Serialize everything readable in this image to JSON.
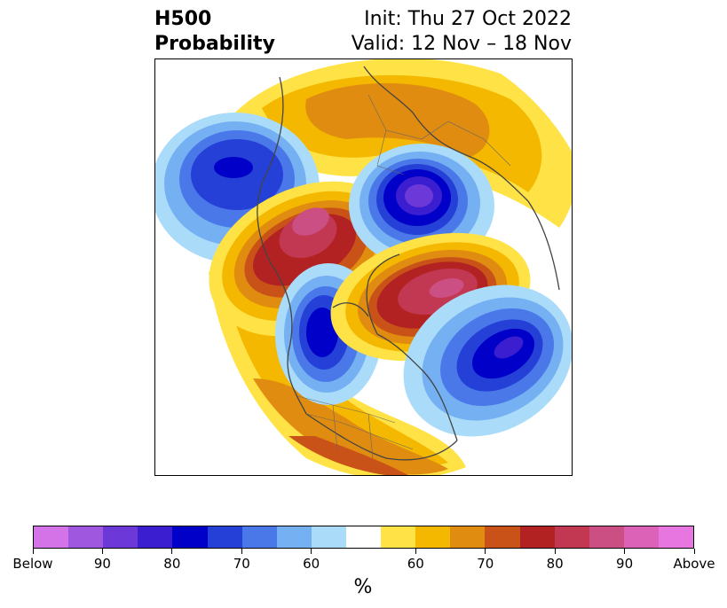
{
  "title": {
    "left_line1": "H500",
    "left_line2": "Probability",
    "right_line1": "Init: Thu 27 Oct 2022",
    "right_line2": "Valid: 12 Nov – 18 Nov"
  },
  "map": {
    "type": "north-polar-stereographic",
    "field": "500 hPa height anomaly probability",
    "anomaly_centers": [
      {
        "region": "Gulf of Alaska / NE Pacific",
        "sign": "below"
      },
      {
        "region": "Eastern Siberia / Bering",
        "sign": "above"
      },
      {
        "region": "Central Russia",
        "sign": "below"
      },
      {
        "region": "Canadian Arctic / Hudson Bay",
        "sign": "below"
      },
      {
        "region": "Greenland / North Atlantic",
        "sign": "above"
      },
      {
        "region": "Western North Atlantic",
        "sign": "below"
      }
    ]
  },
  "colorbar": {
    "unit": "%",
    "colors": [
      "#d473e8",
      "#9f57e0",
      "#6c38d8",
      "#3a1ed0",
      "#0000c8",
      "#2540d6",
      "#4a78e8",
      "#74b0f2",
      "#aadcfa",
      "#ffffff",
      "#ffe246",
      "#f4b800",
      "#e08c10",
      "#c85218",
      "#b22222",
      "#c23852",
      "#cc4f83",
      "#dc62b8",
      "#e876e0"
    ],
    "tick_labels": [
      "Below",
      "90",
      "80",
      "70",
      "60",
      "60",
      "70",
      "80",
      "90",
      "Above"
    ]
  }
}
